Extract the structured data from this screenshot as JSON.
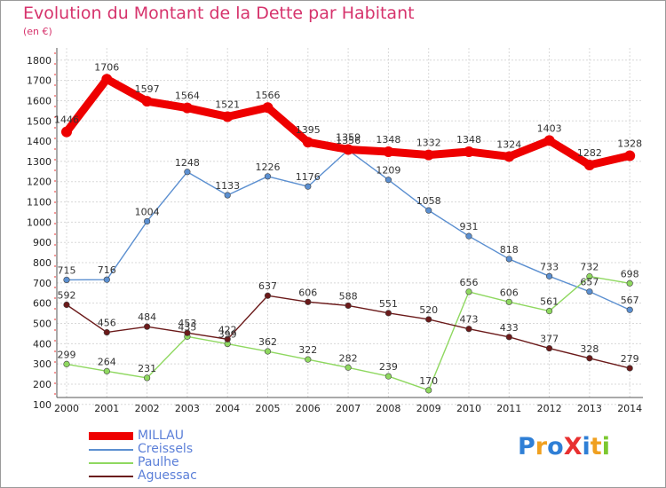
{
  "title": "Evolution du Montant de la Dette par Habitant",
  "unit": "(en €)",
  "logo_text": "ProXiti",
  "chart_data": {
    "type": "line",
    "title": "Evolution du Montant de la Dette par Habitant",
    "ylabel": "(en €)",
    "xlabel": "",
    "ylim": [
      100,
      1800
    ],
    "yticks": [
      100,
      200,
      300,
      400,
      500,
      600,
      700,
      800,
      900,
      1000,
      1100,
      1200,
      1300,
      1400,
      1500,
      1600,
      1700,
      1800
    ],
    "grid": true,
    "legend": "bottom-left",
    "x": [
      "2000",
      "2001",
      "2002",
      "2003",
      "2004",
      "2005",
      "2006",
      "2007",
      "2008",
      "2009",
      "2010",
      "2011",
      "2012",
      "2013",
      "2014"
    ],
    "series": [
      {
        "name": "MILLAU",
        "color": "#ee0000",
        "values": [
          1446,
          1706,
          1597,
          1564,
          1521,
          1566,
          1395,
          1359,
          1348,
          1332,
          1348,
          1324,
          1403,
          1282,
          1328
        ]
      },
      {
        "name": "Creissels",
        "color": "#5b8fd0",
        "values": [
          715,
          716,
          1004,
          1248,
          1133,
          1226,
          1176,
          1356,
          1209,
          1058,
          931,
          818,
          733,
          657,
          567
        ]
      },
      {
        "name": "Paulhe",
        "color": "#8fd860",
        "values": [
          299,
          264,
          231,
          435,
          399,
          362,
          322,
          282,
          239,
          170,
          656,
          606,
          561,
          732,
          698
        ]
      },
      {
        "name": "Aguessac",
        "color": "#6b1a1a",
        "values": [
          592,
          456,
          484,
          453,
          422,
          637,
          606,
          588,
          551,
          520,
          473,
          433,
          377,
          328,
          279
        ]
      }
    ]
  }
}
